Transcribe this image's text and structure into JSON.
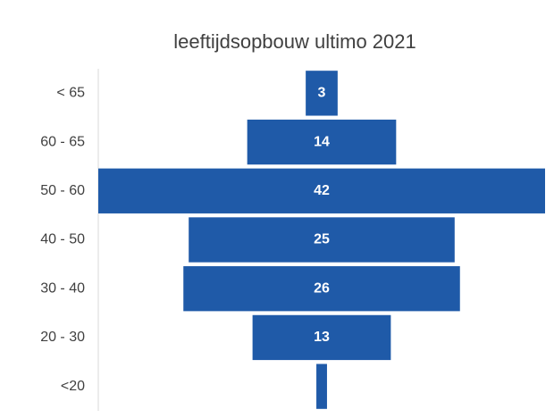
{
  "chart_data": {
    "type": "funnel",
    "title": "leeftijdsopbouw ultimo 2021",
    "categories": [
      "< 65",
      "60 - 65",
      "50 - 60",
      "40 - 50",
      "30 - 40",
      "20 - 30",
      "<20"
    ],
    "values": [
      3,
      14,
      42,
      25,
      26,
      13,
      1
    ],
    "value_labels": [
      "3",
      "14",
      "42",
      "25",
      "26",
      "13",
      null
    ],
    "color": "#1f5aa8"
  }
}
